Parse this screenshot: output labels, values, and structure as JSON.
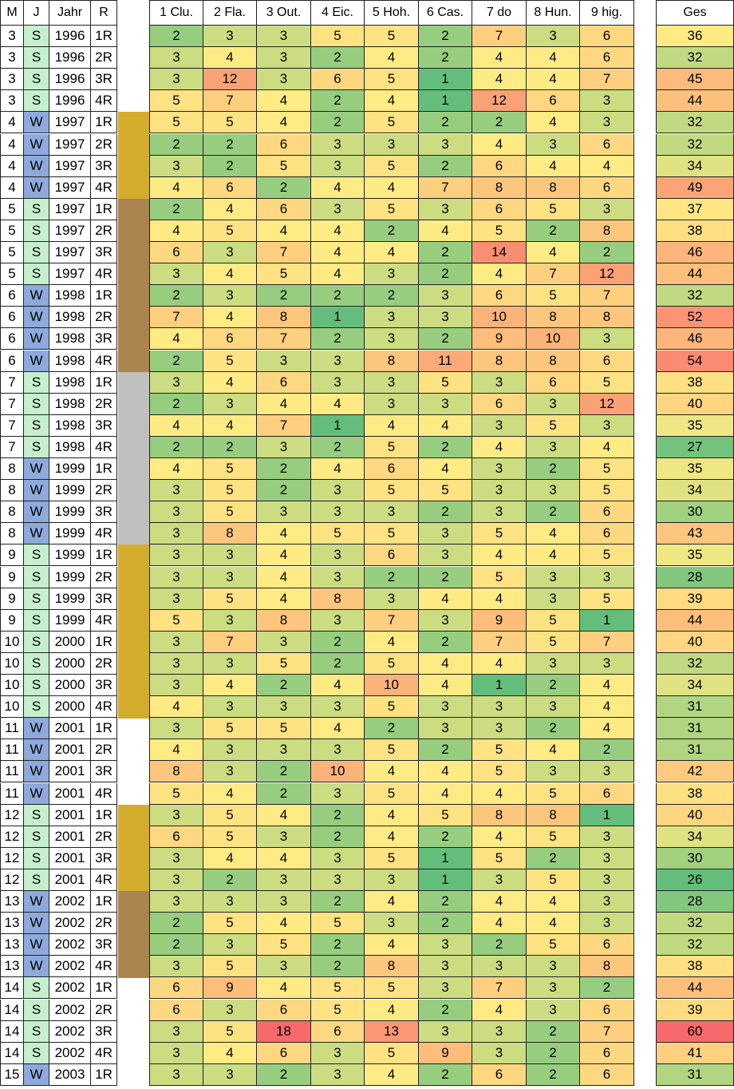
{
  "headers": {
    "m": "M",
    "j": "J",
    "jahr": "Jahr",
    "r": "R",
    "holes": [
      "1 Clu.",
      "2 Fla.",
      "3 Out.",
      "4 Eic.",
      "5 Hoh.",
      "6 Cas.",
      "7 do",
      "8 Hun.",
      "9 hig."
    ],
    "total": "Ges"
  },
  "colors": {
    "season_S": "#c6efce",
    "season_W": "#8ea9db",
    "band_gold": "#d4ac2b",
    "band_brown": "#a9844f",
    "band_gray": "#c0c0c0",
    "scale_best": "#63be7b",
    "scale_mid": "#ffeb84",
    "scale_worst": "#f8696b"
  },
  "rows": [
    {
      "m": "3",
      "j": "S",
      "jahr": "1996",
      "r": "1R",
      "band": "none",
      "scores": [
        2,
        3,
        3,
        5,
        5,
        2,
        7,
        3,
        6
      ],
      "total": 36
    },
    {
      "m": "3",
      "j": "S",
      "jahr": "1996",
      "r": "2R",
      "band": "none",
      "scores": [
        3,
        4,
        3,
        2,
        4,
        2,
        4,
        4,
        6
      ],
      "total": 32
    },
    {
      "m": "3",
      "j": "S",
      "jahr": "1996",
      "r": "3R",
      "band": "none",
      "scores": [
        3,
        12,
        3,
        6,
        5,
        1,
        4,
        4,
        7
      ],
      "total": 45
    },
    {
      "m": "3",
      "j": "S",
      "jahr": "1996",
      "r": "4R",
      "band": "none",
      "scores": [
        5,
        7,
        4,
        2,
        4,
        1,
        12,
        6,
        3
      ],
      "total": 44
    },
    {
      "m": "4",
      "j": "W",
      "jahr": "1997",
      "r": "1R",
      "band": "gold",
      "scores": [
        5,
        5,
        4,
        2,
        5,
        2,
        2,
        4,
        3
      ],
      "total": 32
    },
    {
      "m": "4",
      "j": "W",
      "jahr": "1997",
      "r": "2R",
      "band": "gold",
      "scores": [
        2,
        2,
        6,
        3,
        3,
        3,
        4,
        3,
        6
      ],
      "total": 32
    },
    {
      "m": "4",
      "j": "W",
      "jahr": "1997",
      "r": "3R",
      "band": "gold",
      "scores": [
        3,
        2,
        5,
        3,
        5,
        2,
        6,
        4,
        4
      ],
      "total": 34
    },
    {
      "m": "4",
      "j": "W",
      "jahr": "1997",
      "r": "4R",
      "band": "gold",
      "scores": [
        4,
        6,
        2,
        4,
        4,
        7,
        8,
        8,
        6
      ],
      "total": 49
    },
    {
      "m": "5",
      "j": "S",
      "jahr": "1997",
      "r": "1R",
      "band": "brown",
      "scores": [
        2,
        4,
        6,
        3,
        5,
        3,
        6,
        5,
        3
      ],
      "total": 37
    },
    {
      "m": "5",
      "j": "S",
      "jahr": "1997",
      "r": "2R",
      "band": "brown",
      "scores": [
        4,
        5,
        4,
        4,
        2,
        4,
        5,
        2,
        8
      ],
      "total": 38
    },
    {
      "m": "5",
      "j": "S",
      "jahr": "1997",
      "r": "3R",
      "band": "brown",
      "scores": [
        6,
        3,
        7,
        4,
        4,
        2,
        14,
        4,
        2
      ],
      "total": 46
    },
    {
      "m": "5",
      "j": "S",
      "jahr": "1997",
      "r": "4R",
      "band": "brown",
      "scores": [
        3,
        4,
        5,
        4,
        3,
        2,
        4,
        7,
        12
      ],
      "total": 44
    },
    {
      "m": "6",
      "j": "W",
      "jahr": "1998",
      "r": "1R",
      "band": "brown",
      "scores": [
        2,
        3,
        2,
        2,
        2,
        3,
        6,
        5,
        7
      ],
      "total": 32
    },
    {
      "m": "6",
      "j": "W",
      "jahr": "1998",
      "r": "2R",
      "band": "brown",
      "scores": [
        7,
        4,
        8,
        1,
        3,
        3,
        10,
        8,
        8
      ],
      "total": 52
    },
    {
      "m": "6",
      "j": "W",
      "jahr": "1998",
      "r": "3R",
      "band": "brown",
      "scores": [
        4,
        6,
        7,
        2,
        3,
        2,
        9,
        10,
        3
      ],
      "total": 46
    },
    {
      "m": "6",
      "j": "W",
      "jahr": "1998",
      "r": "4R",
      "band": "brown",
      "scores": [
        2,
        5,
        3,
        3,
        8,
        11,
        8,
        8,
        6
      ],
      "total": 54
    },
    {
      "m": "7",
      "j": "S",
      "jahr": "1998",
      "r": "1R",
      "band": "gray",
      "scores": [
        3,
        4,
        6,
        3,
        3,
        5,
        3,
        6,
        5
      ],
      "total": 38
    },
    {
      "m": "7",
      "j": "S",
      "jahr": "1998",
      "r": "2R",
      "band": "gray",
      "scores": [
        2,
        3,
        4,
        4,
        3,
        3,
        6,
        3,
        12
      ],
      "total": 40
    },
    {
      "m": "7",
      "j": "S",
      "jahr": "1998",
      "r": "3R",
      "band": "gray",
      "scores": [
        4,
        4,
        7,
        1,
        4,
        4,
        3,
        5,
        3
      ],
      "total": 35
    },
    {
      "m": "7",
      "j": "S",
      "jahr": "1998",
      "r": "4R",
      "band": "gray",
      "scores": [
        2,
        2,
        3,
        2,
        5,
        2,
        4,
        3,
        4
      ],
      "total": 27
    },
    {
      "m": "8",
      "j": "W",
      "jahr": "1999",
      "r": "1R",
      "band": "gray",
      "scores": [
        4,
        5,
        2,
        4,
        6,
        4,
        3,
        2,
        5
      ],
      "total": 35
    },
    {
      "m": "8",
      "j": "W",
      "jahr": "1999",
      "r": "2R",
      "band": "gray",
      "scores": [
        3,
        5,
        2,
        3,
        5,
        5,
        3,
        3,
        5
      ],
      "total": 34
    },
    {
      "m": "8",
      "j": "W",
      "jahr": "1999",
      "r": "3R",
      "band": "gray",
      "scores": [
        3,
        5,
        3,
        3,
        3,
        2,
        3,
        2,
        6
      ],
      "total": 30
    },
    {
      "m": "8",
      "j": "W",
      "jahr": "1999",
      "r": "4R",
      "band": "gray",
      "scores": [
        3,
        8,
        4,
        5,
        5,
        3,
        5,
        4,
        6
      ],
      "total": 43
    },
    {
      "m": "9",
      "j": "S",
      "jahr": "1999",
      "r": "1R",
      "band": "gold",
      "scores": [
        3,
        3,
        4,
        3,
        6,
        3,
        4,
        4,
        5
      ],
      "total": 35
    },
    {
      "m": "9",
      "j": "S",
      "jahr": "1999",
      "r": "2R",
      "band": "gold",
      "scores": [
        3,
        3,
        4,
        3,
        2,
        2,
        5,
        3,
        3
      ],
      "total": 28
    },
    {
      "m": "9",
      "j": "S",
      "jahr": "1999",
      "r": "3R",
      "band": "gold",
      "scores": [
        3,
        5,
        4,
        8,
        3,
        4,
        4,
        3,
        5
      ],
      "total": 39
    },
    {
      "m": "9",
      "j": "S",
      "jahr": "1999",
      "r": "4R",
      "band": "gold",
      "scores": [
        5,
        3,
        8,
        3,
        7,
        3,
        9,
        5,
        1
      ],
      "total": 44
    },
    {
      "m": "10",
      "j": "S",
      "jahr": "2000",
      "r": "1R",
      "band": "gold",
      "scores": [
        3,
        7,
        3,
        2,
        4,
        2,
        7,
        5,
        7
      ],
      "total": 40
    },
    {
      "m": "10",
      "j": "S",
      "jahr": "2000",
      "r": "2R",
      "band": "gold",
      "scores": [
        3,
        3,
        5,
        2,
        5,
        4,
        4,
        3,
        3
      ],
      "total": 32
    },
    {
      "m": "10",
      "j": "S",
      "jahr": "2000",
      "r": "3R",
      "band": "gold",
      "scores": [
        3,
        4,
        2,
        4,
        10,
        4,
        1,
        2,
        4
      ],
      "total": 34
    },
    {
      "m": "10",
      "j": "S",
      "jahr": "2000",
      "r": "4R",
      "band": "gold",
      "scores": [
        4,
        3,
        3,
        3,
        5,
        3,
        3,
        3,
        4
      ],
      "total": 31
    },
    {
      "m": "11",
      "j": "W",
      "jahr": "2001",
      "r": "1R",
      "band": "none",
      "scores": [
        3,
        5,
        5,
        4,
        2,
        3,
        3,
        2,
        4
      ],
      "total": 31
    },
    {
      "m": "11",
      "j": "W",
      "jahr": "2001",
      "r": "2R",
      "band": "none",
      "scores": [
        4,
        3,
        3,
        3,
        5,
        2,
        5,
        4,
        2
      ],
      "total": 31
    },
    {
      "m": "11",
      "j": "W",
      "jahr": "2001",
      "r": "3R",
      "band": "none",
      "scores": [
        8,
        3,
        2,
        10,
        4,
        4,
        5,
        3,
        3
      ],
      "total": 42
    },
    {
      "m": "11",
      "j": "W",
      "jahr": "2001",
      "r": "4R",
      "band": "none",
      "scores": [
        5,
        4,
        2,
        3,
        5,
        4,
        4,
        5,
        6
      ],
      "total": 38
    },
    {
      "m": "12",
      "j": "S",
      "jahr": "2001",
      "r": "1R",
      "band": "gold",
      "scores": [
        3,
        5,
        4,
        2,
        4,
        5,
        8,
        8,
        1
      ],
      "total": 40
    },
    {
      "m": "12",
      "j": "S",
      "jahr": "2001",
      "r": "2R",
      "band": "gold",
      "scores": [
        6,
        5,
        3,
        2,
        4,
        2,
        4,
        5,
        3
      ],
      "total": 34
    },
    {
      "m": "12",
      "j": "S",
      "jahr": "2001",
      "r": "3R",
      "band": "gold",
      "scores": [
        3,
        4,
        4,
        3,
        5,
        1,
        5,
        2,
        3
      ],
      "total": 30
    },
    {
      "m": "12",
      "j": "S",
      "jahr": "2001",
      "r": "4R",
      "band": "gold",
      "scores": [
        3,
        2,
        3,
        3,
        3,
        1,
        3,
        5,
        3
      ],
      "total": 26
    },
    {
      "m": "13",
      "j": "W",
      "jahr": "2002",
      "r": "1R",
      "band": "brown",
      "scores": [
        3,
        3,
        3,
        2,
        4,
        2,
        4,
        4,
        3
      ],
      "total": 28
    },
    {
      "m": "13",
      "j": "W",
      "jahr": "2002",
      "r": "2R",
      "band": "brown",
      "scores": [
        2,
        5,
        4,
        5,
        3,
        2,
        4,
        4,
        3
      ],
      "total": 32
    },
    {
      "m": "13",
      "j": "W",
      "jahr": "2002",
      "r": "3R",
      "band": "brown",
      "scores": [
        2,
        3,
        5,
        2,
        4,
        3,
        2,
        5,
        6
      ],
      "total": 32
    },
    {
      "m": "13",
      "j": "W",
      "jahr": "2002",
      "r": "4R",
      "band": "brown",
      "scores": [
        3,
        5,
        3,
        2,
        8,
        3,
        3,
        3,
        8
      ],
      "total": 38
    },
    {
      "m": "14",
      "j": "S",
      "jahr": "2002",
      "r": "1R",
      "band": "none",
      "scores": [
        6,
        9,
        4,
        5,
        5,
        3,
        7,
        3,
        2
      ],
      "total": 44
    },
    {
      "m": "14",
      "j": "S",
      "jahr": "2002",
      "r": "2R",
      "band": "none",
      "scores": [
        6,
        3,
        6,
        5,
        4,
        2,
        4,
        3,
        6
      ],
      "total": 39
    },
    {
      "m": "14",
      "j": "S",
      "jahr": "2002",
      "r": "3R",
      "band": "none",
      "scores": [
        3,
        5,
        18,
        6,
        13,
        3,
        3,
        2,
        7
      ],
      "total": 60
    },
    {
      "m": "14",
      "j": "S",
      "jahr": "2002",
      "r": "4R",
      "band": "none",
      "scores": [
        3,
        4,
        6,
        3,
        5,
        9,
        3,
        2,
        6
      ],
      "total": 41
    },
    {
      "m": "15",
      "j": "W",
      "jahr": "2003",
      "r": "1R",
      "band": "none",
      "scores": [
        3,
        3,
        2,
        3,
        4,
        2,
        6,
        2,
        6
      ],
      "total": 31
    }
  ]
}
